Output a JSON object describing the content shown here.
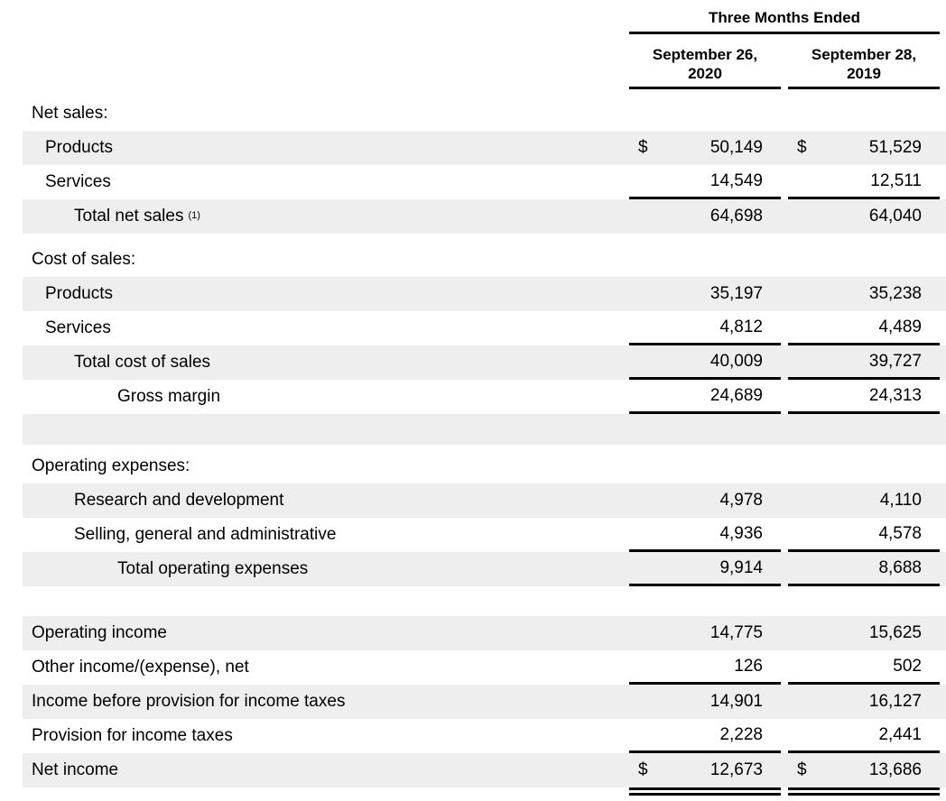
{
  "colors": {
    "shaded_row": "#eeeeee",
    "rule": "#000000",
    "text": "#000000"
  },
  "header": {
    "period_label": "Three Months Ended",
    "columns": [
      {
        "line1": "September 26,",
        "line2": "2020"
      },
      {
        "line1": "September 28,",
        "line2": "2019"
      }
    ]
  },
  "rows": [
    {
      "kind": "row",
      "label": "Net sales:",
      "indent": 0,
      "shaded": false,
      "values": [
        "",
        ""
      ]
    },
    {
      "kind": "row",
      "label": "Products",
      "indent": 1,
      "shaded": true,
      "dollar": "$",
      "values": [
        "50,149",
        "51,529"
      ]
    },
    {
      "kind": "row",
      "label": "Services",
      "indent": 1,
      "shaded": false,
      "values": [
        "14,549",
        "12,511"
      ],
      "underline": "single"
    },
    {
      "kind": "row",
      "label": "Total net sales",
      "sup": "(1)",
      "indent": 2,
      "shaded": true,
      "values": [
        "64,698",
        "64,040"
      ]
    },
    {
      "kind": "spacer",
      "height": 10
    },
    {
      "kind": "row",
      "label": "Cost of sales:",
      "indent": 0,
      "shaded": false,
      "values": [
        "",
        ""
      ]
    },
    {
      "kind": "row",
      "label": "Products",
      "indent": 1,
      "shaded": true,
      "values": [
        "35,197",
        "35,238"
      ]
    },
    {
      "kind": "row",
      "label": "Services",
      "indent": 1,
      "shaded": false,
      "values": [
        "4,812",
        "4,489"
      ],
      "underline": "single"
    },
    {
      "kind": "row",
      "label": "Total cost of sales",
      "indent": 2,
      "shaded": true,
      "values": [
        "40,009",
        "39,727"
      ],
      "underline": "single"
    },
    {
      "kind": "row",
      "label": "Gross margin",
      "indent": 3,
      "shaded": false,
      "values": [
        "24,689",
        "24,313"
      ],
      "underline": "single"
    },
    {
      "kind": "blank",
      "height": 34,
      "shaded": true
    },
    {
      "kind": "spacer",
      "height": 5
    },
    {
      "kind": "row",
      "label": "Operating expenses:",
      "indent": 0,
      "shaded": false,
      "values": [
        "",
        ""
      ]
    },
    {
      "kind": "row",
      "label": "Research and development",
      "indent": 2,
      "shaded": true,
      "values": [
        "4,978",
        "4,110"
      ]
    },
    {
      "kind": "row",
      "label": "Selling, general and administrative",
      "indent": 2,
      "shaded": false,
      "values": [
        "4,936",
        "4,578"
      ],
      "underline": "single"
    },
    {
      "kind": "row",
      "label": "Total operating expenses",
      "indent": 3,
      "shaded": true,
      "values": [
        "9,914",
        "8,688"
      ],
      "underline": "single"
    },
    {
      "kind": "spacer",
      "height": 33
    },
    {
      "kind": "row",
      "label": "Operating income",
      "indent": 0,
      "shaded": true,
      "values": [
        "14,775",
        "15,625"
      ]
    },
    {
      "kind": "row",
      "label": "Other income/(expense), net",
      "indent": 0,
      "shaded": false,
      "values": [
        "126",
        "502"
      ],
      "underline": "single"
    },
    {
      "kind": "row",
      "label": "Income before provision for income taxes",
      "indent": 0,
      "shaded": true,
      "values": [
        "14,901",
        "16,127"
      ]
    },
    {
      "kind": "row",
      "label": "Provision for income taxes",
      "indent": 0,
      "shaded": false,
      "values": [
        "2,228",
        "2,441"
      ],
      "underline": "single"
    },
    {
      "kind": "row",
      "label": "Net income",
      "indent": 0,
      "shaded": true,
      "dollar": "$",
      "values": [
        "12,673",
        "13,686"
      ],
      "underline": "double"
    }
  ]
}
